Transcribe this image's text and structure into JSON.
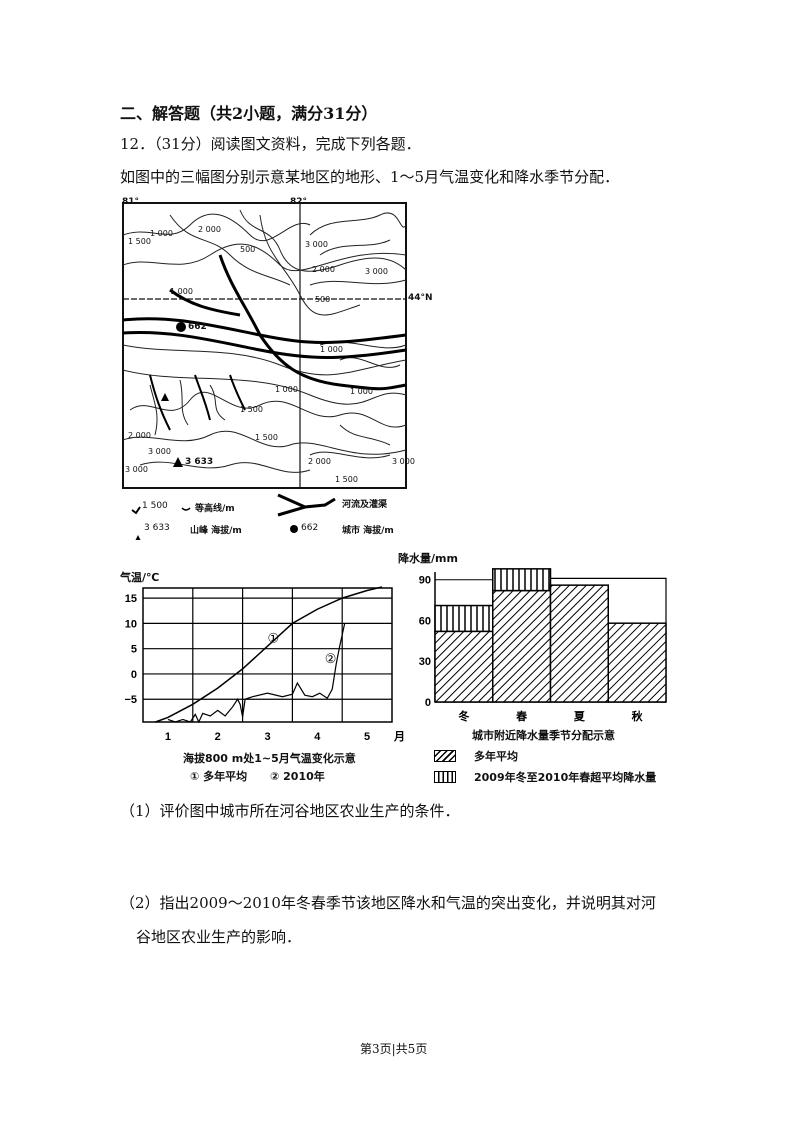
{
  "section_title": "二、解答题（共2小题，满分31分）",
  "question": {
    "number_score": "12．（31分）阅读图文资料，完成下列各题．",
    "intro": "如图中的三幅图分别示意某地区的地形、1～5月气温变化和降水季节分配．",
    "sub1": "（1）评价图中城市所在河谷地区农业生产的条件．",
    "sub2_line1": "（2）指出2009～2010年冬春季节该地区降水和气温的突出变化，并说明其对河",
    "sub2_line2": "谷地区农业生产的影响．"
  },
  "map": {
    "lon_left": "81°",
    "lon_right": "82°",
    "lat": "44°N",
    "contour_labels": [
      "1 000",
      "1 500",
      "2 000",
      "3 000",
      "2 000",
      "3 000",
      "1 000",
      "500",
      "1 000",
      "1 000",
      "1 000",
      "1 500",
      "2 000",
      "3 000",
      "1 500",
      "2 000",
      "1 500",
      "3 000",
      "3 000",
      "500"
    ],
    "city_elev": "662",
    "peak_elev": "3 633",
    "legend": {
      "contour_sample": "1 500",
      "contour_label": "等高线/m",
      "river_label": "河流及灌渠",
      "peak_sample": "3 633",
      "peak_label": "山峰 海拔/m",
      "city_sample": "662",
      "city_label": "城市 海拔/m"
    }
  },
  "chart_data": [
    {
      "type": "line",
      "title": "海拔800 m处1~5月气温变化示意",
      "ylabel": "气温/℃",
      "xlabel": "月",
      "x_ticks": [
        "1",
        "2",
        "3",
        "4",
        "5"
      ],
      "y_ticks": [
        15,
        10,
        5,
        0,
        -5
      ],
      "ylim": [
        -9.5,
        17
      ],
      "xlim": [
        0.5,
        5.5
      ],
      "grid": true,
      "series": [
        {
          "name": "① 多年平均",
          "marker": "①",
          "points": [
            [
              0.75,
              -9.5
            ],
            [
              1.0,
              -8.6
            ],
            [
              1.5,
              -6
            ],
            [
              2.0,
              -2.8
            ],
            [
              2.5,
              1
            ],
            [
              3.0,
              5.5
            ],
            [
              3.5,
              10
            ],
            [
              4.0,
              12.8
            ],
            [
              4.5,
              15
            ],
            [
              5.0,
              16.5
            ],
            [
              5.3,
              17.2
            ]
          ]
        },
        {
          "name": "② 2010年",
          "marker": "②",
          "points": [
            [
              1.0,
              -9
            ],
            [
              1.15,
              -9.5
            ],
            [
              1.3,
              -9
            ],
            [
              1.45,
              -9.5
            ],
            [
              1.55,
              -8
            ],
            [
              1.62,
              -9.5
            ],
            [
              1.7,
              -7.8
            ],
            [
              1.85,
              -8.3
            ],
            [
              2.0,
              -7.2
            ],
            [
              2.15,
              -8.3
            ],
            [
              2.3,
              -6.5
            ],
            [
              2.4,
              -5
            ],
            [
              2.45,
              -6
            ],
            [
              2.5,
              -8.5
            ],
            [
              2.55,
              -5
            ],
            [
              2.7,
              -4.5
            ],
            [
              3.0,
              -3.8
            ],
            [
              3.3,
              -4.5
            ],
            [
              3.5,
              -4
            ],
            [
              3.6,
              -1.8
            ],
            [
              3.75,
              -4.2
            ],
            [
              3.9,
              -4.5
            ],
            [
              4.05,
              -3.8
            ],
            [
              4.2,
              -4.8
            ],
            [
              4.3,
              -3
            ],
            [
              4.38,
              2
            ],
            [
              4.45,
              5.5
            ],
            [
              4.55,
              10
            ]
          ]
        }
      ]
    },
    {
      "type": "bar",
      "title": "城市附近降水量季节分配示意",
      "ylabel": "降水量/mm",
      "categories": [
        "冬",
        "春",
        "夏",
        "秋"
      ],
      "y_ticks": [
        0,
        30,
        60,
        90
      ],
      "ylim": [
        0,
        92
      ],
      "series": [
        {
          "name": "多年平均",
          "pattern": "diagonal-hatch",
          "values": [
            52,
            82,
            86,
            58
          ]
        },
        {
          "name": "2009年冬至2010年春超平均降水量",
          "pattern": "vertical-stripes",
          "values": [
            19,
            16,
            0,
            0
          ]
        }
      ]
    }
  ],
  "footer": "第3页|共5页"
}
